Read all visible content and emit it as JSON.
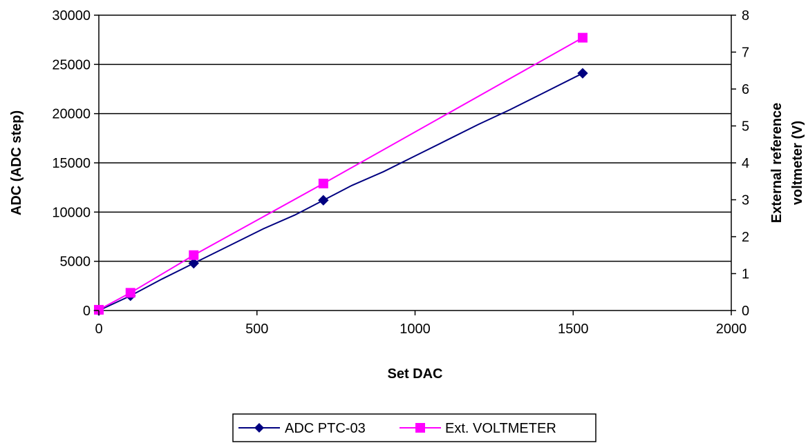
{
  "chart_data": {
    "type": "line",
    "title": "",
    "xlabel": "Set DAC",
    "ylabel": "ADC (ADC step)",
    "y2label_lines": [
      "External reference",
      "voltmeter (V)"
    ],
    "xlim": [
      0,
      2000
    ],
    "ylim": [
      0,
      30000
    ],
    "y2lim": [
      0,
      8
    ],
    "x_ticks": [
      "0",
      "500",
      "1000",
      "1500",
      "2000"
    ],
    "y_ticks": [
      "0",
      "5000",
      "10000",
      "15000",
      "20000",
      "25000",
      "30000"
    ],
    "y2_ticks": [
      "0",
      "1",
      "2",
      "3",
      "4",
      "5",
      "6",
      "7",
      "8"
    ],
    "grid": "horizontal",
    "legend_position": "bottom",
    "series": [
      {
        "name": "ADC PTC-03",
        "axis": "left",
        "color": "#000080",
        "marker": "diamond",
        "x": [
          0,
          100,
          300,
          710,
          1530
        ],
        "y": [
          0,
          1500,
          4800,
          11200,
          24100
        ],
        "line_x": [
          0,
          100,
          200,
          300,
          420,
          520,
          620,
          710,
          800,
          900,
          1000,
          1100,
          1200,
          1300,
          1400,
          1530
        ],
        "line_y": [
          0,
          1500,
          3200,
          4800,
          6700,
          8300,
          9700,
          11200,
          12700,
          14100,
          15700,
          17300,
          18900,
          20400,
          22000,
          24100
        ]
      },
      {
        "name": "Ext. VOLTMETER",
        "axis": "right",
        "color": "#ff00ff",
        "marker": "square",
        "x": [
          0,
          100,
          300,
          710,
          1530
        ],
        "y": [
          0.02,
          0.48,
          1.5,
          3.44,
          7.39
        ]
      }
    ]
  }
}
